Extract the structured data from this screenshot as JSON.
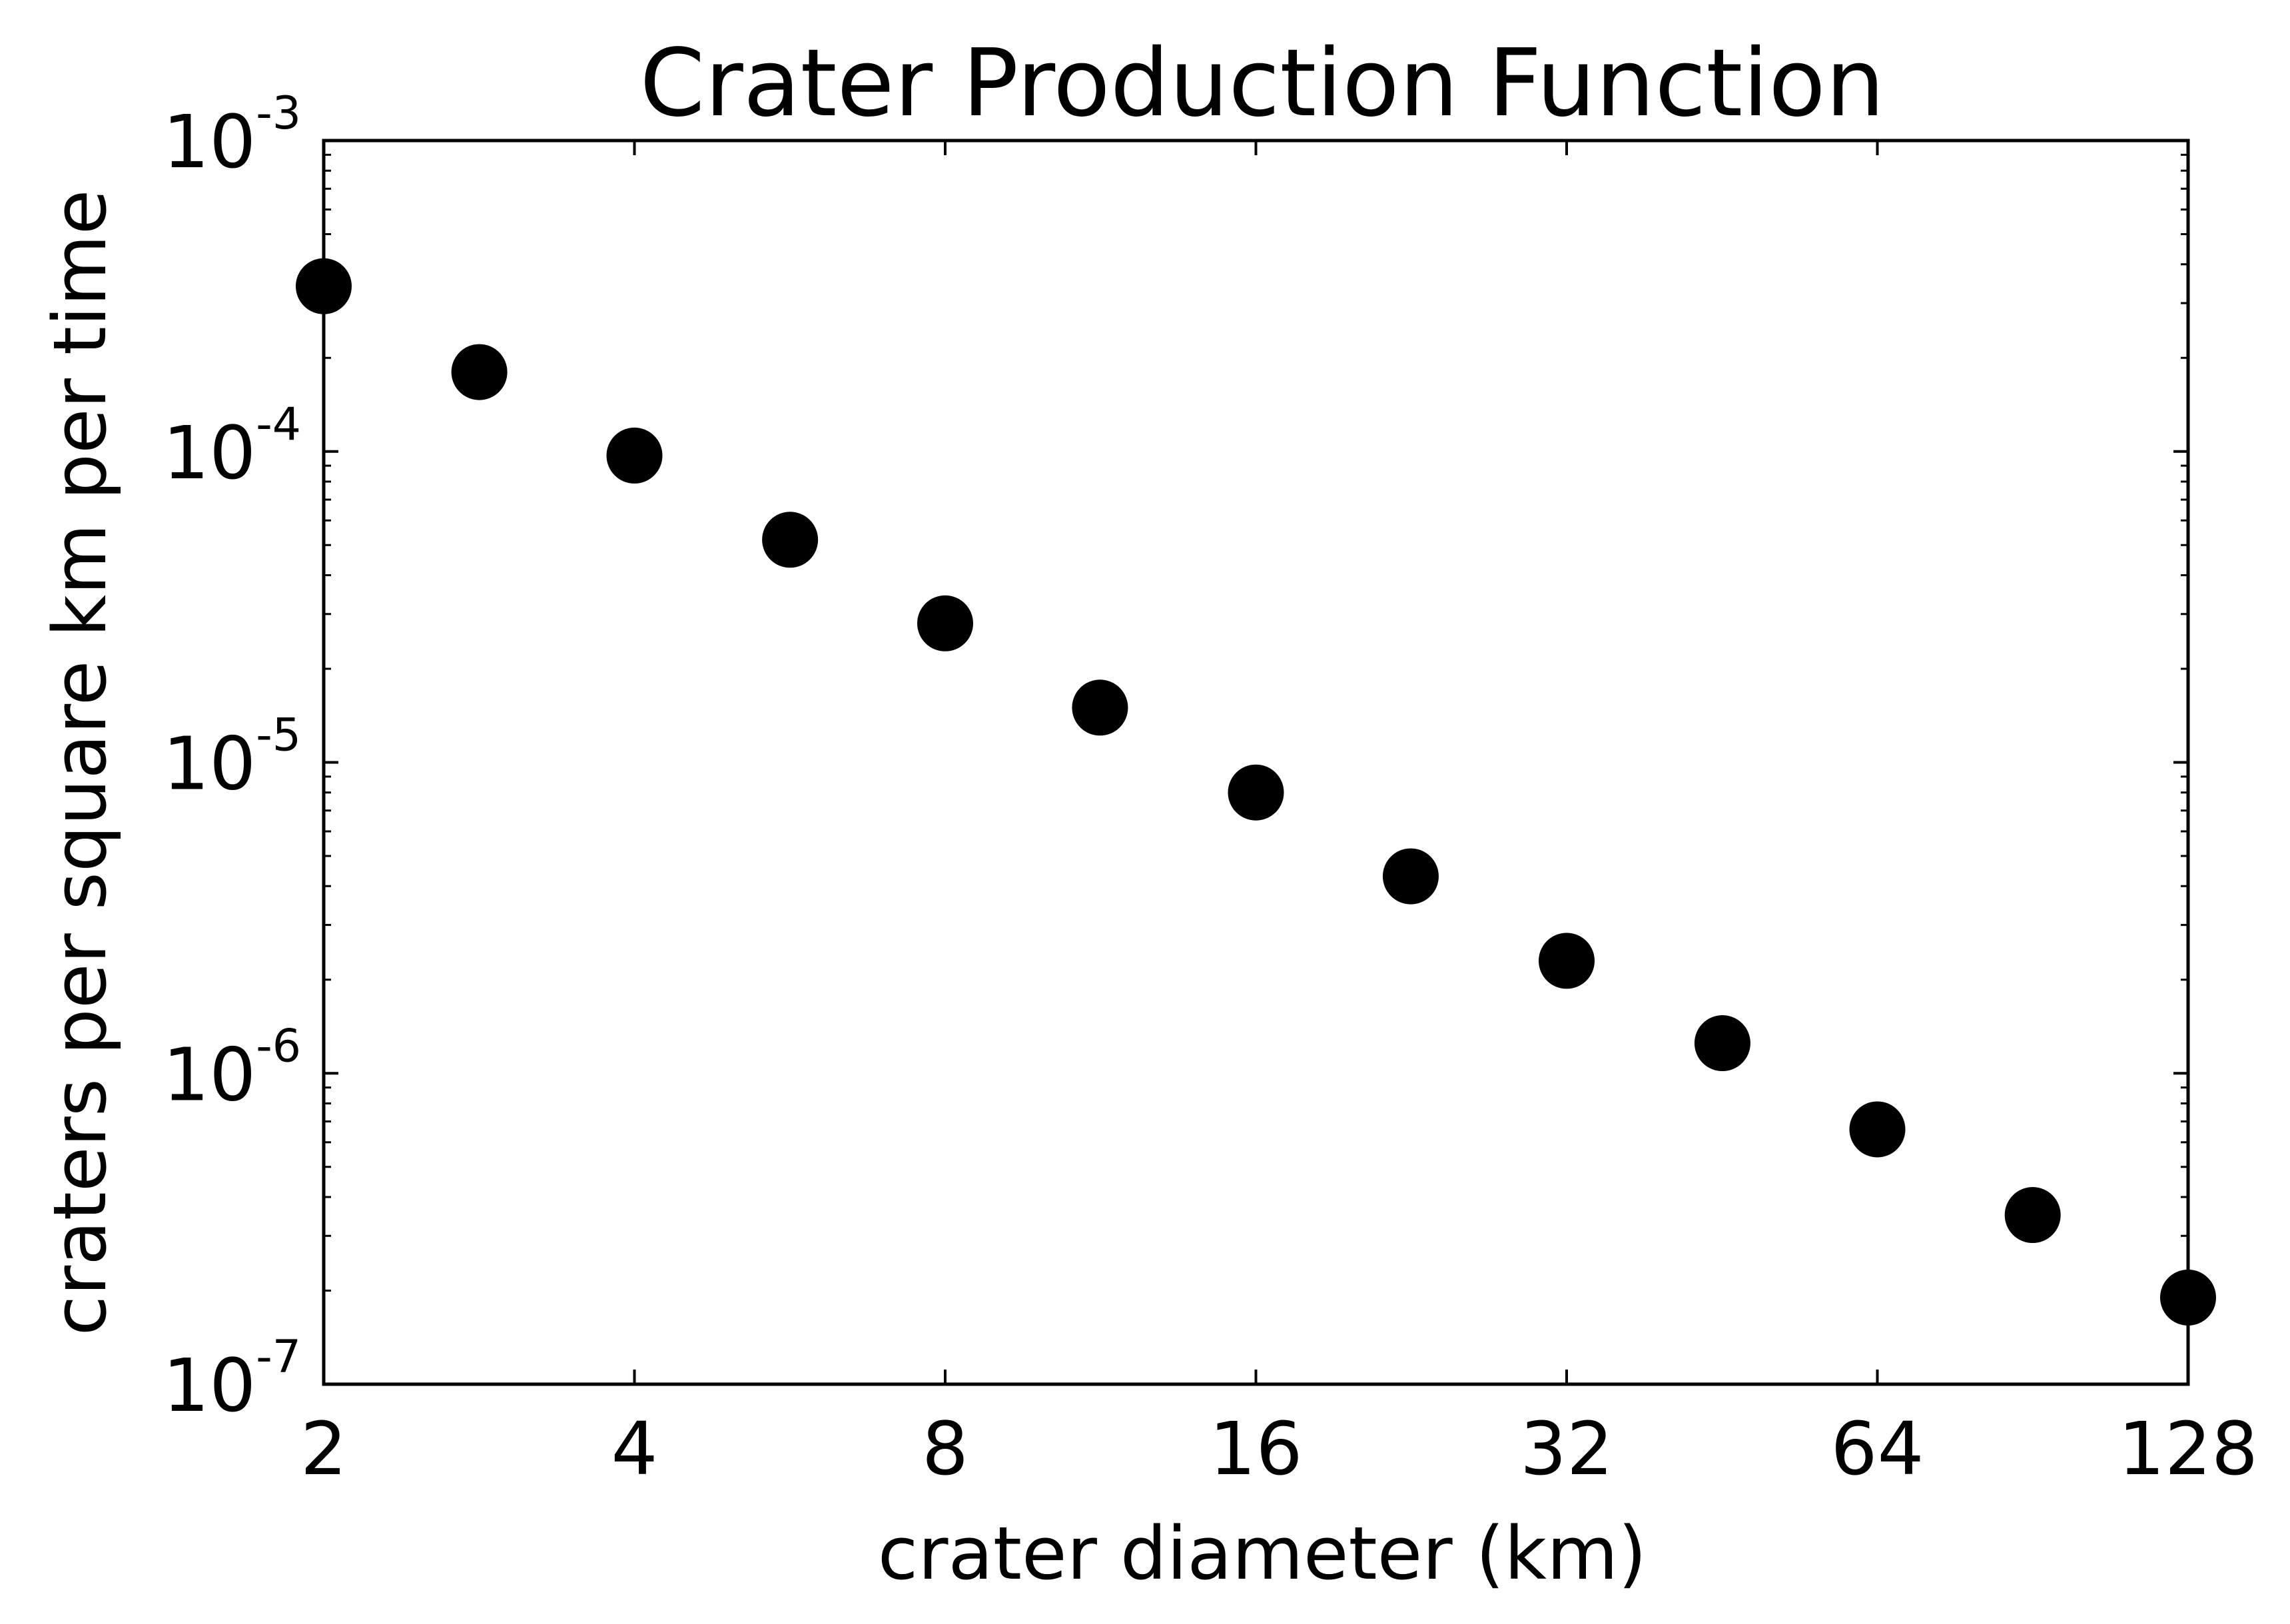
{
  "chart_data": {
    "type": "scatter",
    "title": "Crater Production Function",
    "xlabel": "crater diameter (km)",
    "ylabel": "craters per square km per time",
    "x_scale": "log2",
    "y_scale": "log10",
    "xlim": [
      2,
      128
    ],
    "ylim": [
      1e-07,
      0.001
    ],
    "x_ticks": [
      2,
      4,
      8,
      16,
      32,
      64,
      128
    ],
    "x_tick_labels": [
      "2",
      "4",
      "8",
      "16",
      "32",
      "64",
      "128"
    ],
    "y_ticks": [
      {
        "value": 1e-07,
        "base": "10",
        "exp": "-7"
      },
      {
        "value": 1e-06,
        "base": "10",
        "exp": "-6"
      },
      {
        "value": 1e-05,
        "base": "10",
        "exp": "-5"
      },
      {
        "value": 0.0001,
        "base": "10",
        "exp": "-4"
      },
      {
        "value": 0.001,
        "base": "10",
        "exp": "-3"
      }
    ],
    "grid": false,
    "marker_color": "#000000",
    "points": [
      {
        "x": 2.0,
        "y": 0.00034
      },
      {
        "x": 2.83,
        "y": 0.00018
      },
      {
        "x": 4.0,
        "y": 9.7e-05
      },
      {
        "x": 5.66,
        "y": 5.2e-05
      },
      {
        "x": 8.0,
        "y": 2.8e-05
      },
      {
        "x": 11.3,
        "y": 1.5e-05
      },
      {
        "x": 16.0,
        "y": 8e-06
      },
      {
        "x": 22.6,
        "y": 4.3e-06
      },
      {
        "x": 32.0,
        "y": 2.3e-06
      },
      {
        "x": 45.3,
        "y": 1.25e-06
      },
      {
        "x": 64.0,
        "y": 6.6e-07
      },
      {
        "x": 90.5,
        "y": 3.5e-07
      },
      {
        "x": 128.0,
        "y": 1.9e-07
      }
    ]
  }
}
